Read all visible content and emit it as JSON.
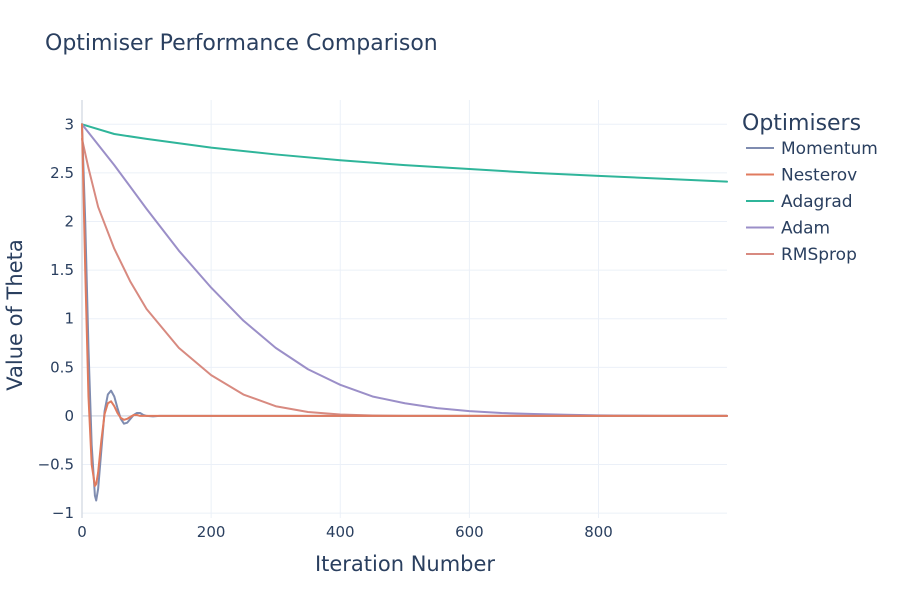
{
  "chart_data": {
    "type": "line",
    "title": "Optimiser Performance Comparison",
    "xlabel": "Iteration Number",
    "ylabel": "Value of Theta",
    "xlim": [
      0,
      999
    ],
    "ylim": [
      -1.05,
      3.25
    ],
    "x_ticks": [
      0,
      200,
      400,
      600,
      800
    ],
    "y_ticks": [
      -1,
      -0.5,
      0,
      0.5,
      1,
      1.5,
      2,
      2.5,
      3
    ],
    "y_tick_labels": [
      "−1",
      "−0.5",
      "0",
      "0.5",
      "1",
      "1.5",
      "2",
      "2.5",
      "3"
    ],
    "grid": true,
    "legend": {
      "title": "Optimisers",
      "position": "right"
    },
    "series": [
      {
        "name": "Momentum",
        "color": "#7f8cb0",
        "x": [
          0,
          5,
          10,
          15,
          20,
          22,
          25,
          30,
          35,
          40,
          45,
          50,
          55,
          60,
          65,
          70,
          75,
          80,
          85,
          90,
          95,
          100,
          110,
          120,
          140,
          999
        ],
        "y": [
          3.0,
          2.0,
          0.7,
          -0.3,
          -0.82,
          -0.87,
          -0.75,
          -0.35,
          0.05,
          0.22,
          0.26,
          0.2,
          0.08,
          -0.03,
          -0.08,
          -0.07,
          -0.03,
          0.01,
          0.03,
          0.03,
          0.01,
          0.0,
          -0.005,
          0.0,
          0.0,
          0.0
        ]
      },
      {
        "name": "Nesterov",
        "color": "#e07b5f",
        "x": [
          0,
          5,
          10,
          15,
          20,
          22,
          25,
          30,
          35,
          40,
          45,
          50,
          55,
          60,
          65,
          70,
          75,
          80,
          85,
          90,
          100,
          120,
          999
        ],
        "y": [
          3.0,
          1.5,
          0.2,
          -0.5,
          -0.72,
          -0.7,
          -0.58,
          -0.25,
          0.02,
          0.13,
          0.15,
          0.1,
          0.03,
          -0.02,
          -0.04,
          -0.03,
          -0.01,
          0.01,
          0.01,
          0.0,
          0.0,
          0.0,
          0.0
        ]
      },
      {
        "name": "Adagrad",
        "color": "#2fb59a",
        "x": [
          0,
          50,
          100,
          200,
          300,
          400,
          500,
          600,
          700,
          800,
          900,
          999
        ],
        "y": [
          3.0,
          2.9,
          2.85,
          2.76,
          2.69,
          2.63,
          2.58,
          2.54,
          2.5,
          2.47,
          2.44,
          2.41
        ]
      },
      {
        "name": "Adam",
        "color": "#9b8fc8",
        "x": [
          0,
          50,
          100,
          150,
          200,
          250,
          300,
          350,
          400,
          450,
          500,
          550,
          600,
          650,
          700,
          750,
          800,
          850,
          900,
          999
        ],
        "y": [
          3.0,
          2.58,
          2.13,
          1.7,
          1.32,
          0.98,
          0.7,
          0.48,
          0.32,
          0.2,
          0.13,
          0.08,
          0.05,
          0.03,
          0.02,
          0.012,
          0.006,
          0.003,
          0.001,
          0.0
        ]
      },
      {
        "name": "RMSprop",
        "color": "#d88a80",
        "x": [
          0,
          10,
          25,
          50,
          75,
          100,
          150,
          200,
          250,
          300,
          350,
          400,
          450,
          500,
          600,
          999
        ],
        "y": [
          2.85,
          2.55,
          2.15,
          1.72,
          1.38,
          1.1,
          0.7,
          0.42,
          0.22,
          0.1,
          0.04,
          0.015,
          0.005,
          0.0,
          0.0,
          0.0
        ]
      }
    ]
  }
}
